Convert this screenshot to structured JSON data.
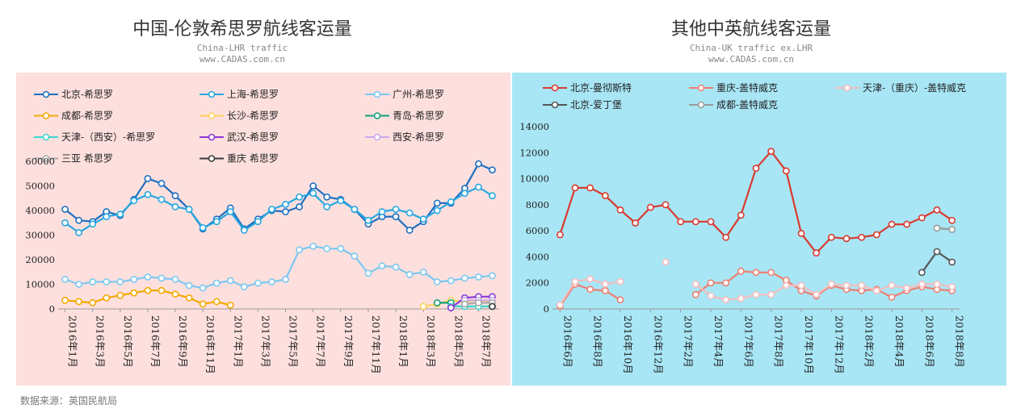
{
  "left": {
    "title": "中国-伦敦希思罗航线客运量",
    "subtitle1": "China-LHR traffic",
    "subtitle2": "www.CADAS.com.cn",
    "bg": "#fde0de"
  },
  "right": {
    "title": "其他中英航线客运量",
    "subtitle1": "China-UK traffic ex.LHR",
    "subtitle2": "www.CADAS.com.cn",
    "bg": "#a8e6f5"
  },
  "source": "数据来源：英国民航局",
  "chart_data": [
    {
      "type": "line",
      "title": "中国-伦敦希思罗航线客运量",
      "ylim": [
        0,
        60000
      ],
      "yticks": [
        0,
        10000,
        20000,
        30000,
        40000,
        50000,
        60000
      ],
      "x_start": "2016-01",
      "n_months": 32,
      "tick_labels": [
        "2016年1月",
        "2016年3月",
        "2016年5月",
        "2016年7月",
        "2016年9月",
        "2016年11月",
        "2017年1月",
        "2017年3月",
        "2017年5月",
        "2017年7月",
        "2017年9月",
        "2017年11月",
        "2018年1月",
        "2018年3月",
        "2018年5月",
        "2018年7月"
      ],
      "tick_every": 2,
      "legend_cols": 3,
      "series": [
        {
          "name": "北京-希思罗",
          "color": "#1e6fc0",
          "width": 2.2,
          "values": [
            40500,
            36000,
            35500,
            39500,
            38000,
            44500,
            53000,
            51000,
            46000,
            40500,
            32500,
            36500,
            41000,
            32500,
            36500,
            40000,
            39500,
            41500,
            50000,
            45500,
            44500,
            40500,
            34500,
            37500,
            37500,
            32000,
            35500,
            43000,
            43000,
            49000,
            59000,
            56500
          ]
        },
        {
          "name": "上海-希思罗",
          "color": "#27a8e0",
          "width": 2.2,
          "values": [
            35000,
            31000,
            34500,
            37500,
            38500,
            44000,
            46500,
            44500,
            41500,
            40500,
            33000,
            35500,
            39500,
            32000,
            35500,
            40500,
            42500,
            45500,
            47000,
            41500,
            44000,
            40500,
            36000,
            39500,
            40500,
            39000,
            36500,
            40000,
            43500,
            47000,
            49500,
            46000
          ]
        },
        {
          "name": "广州-希思罗",
          "color": "#7cc7ef",
          "width": 2.2,
          "values": [
            12000,
            10000,
            11000,
            11000,
            11000,
            12000,
            13000,
            12500,
            12000,
            9500,
            8500,
            10500,
            11500,
            9000,
            10500,
            11000,
            12000,
            24000,
            25500,
            24500,
            24500,
            21500,
            14500,
            17500,
            17000,
            14000,
            15000,
            11000,
            11500,
            12500,
            13000,
            13500
          ]
        },
        {
          "name": "成都-希思罗",
          "color": "#f5a800",
          "width": 2.2,
          "values": [
            3500,
            3000,
            2500,
            4500,
            5500,
            6500,
            7500,
            7500,
            6000,
            4500,
            2000,
            3000,
            1500,
            null,
            null,
            null,
            null,
            null,
            null,
            null,
            null,
            null,
            null,
            null,
            null,
            null,
            null,
            null,
            null,
            null,
            null,
            null
          ]
        },
        {
          "name": "长沙-希思罗",
          "color": "#ffd15c",
          "width": 2.2,
          "values": [
            null,
            null,
            null,
            null,
            null,
            null,
            null,
            null,
            null,
            null,
            null,
            null,
            null,
            null,
            null,
            null,
            null,
            null,
            null,
            null,
            null,
            null,
            null,
            null,
            null,
            null,
            1000,
            2000,
            3500,
            3000,
            3500,
            3000
          ]
        },
        {
          "name": "青岛-希思罗",
          "color": "#16a07a",
          "width": 2.2,
          "values": [
            null,
            null,
            null,
            null,
            null,
            null,
            null,
            null,
            null,
            null,
            null,
            null,
            null,
            null,
            null,
            null,
            null,
            null,
            null,
            null,
            null,
            null,
            null,
            null,
            null,
            null,
            null,
            2500,
            2500,
            null,
            null,
            null
          ]
        },
        {
          "name": "天津-（西安）-希思罗",
          "color": "#3cd6cf",
          "width": 2.2,
          "values": [
            null,
            null,
            null,
            null,
            null,
            null,
            null,
            null,
            null,
            null,
            null,
            null,
            null,
            null,
            null,
            null,
            null,
            null,
            null,
            null,
            null,
            null,
            null,
            null,
            null,
            null,
            null,
            null,
            1000,
            1000,
            1000,
            1000
          ]
        },
        {
          "name": "武汉-希思罗",
          "color": "#8a3ad6",
          "width": 2.2,
          "values": [
            null,
            null,
            null,
            null,
            null,
            null,
            null,
            null,
            null,
            null,
            null,
            null,
            null,
            null,
            null,
            null,
            null,
            null,
            null,
            null,
            null,
            null,
            null,
            null,
            null,
            null,
            null,
            null,
            500,
            4500,
            5000,
            5000
          ]
        },
        {
          "name": "西安-希思罗",
          "color": "#c9a8ef",
          "width": 2.2,
          "values": [
            null,
            null,
            null,
            null,
            null,
            null,
            null,
            null,
            null,
            null,
            null,
            null,
            null,
            null,
            null,
            null,
            null,
            null,
            null,
            null,
            null,
            null,
            null,
            null,
            null,
            null,
            null,
            null,
            null,
            3500,
            3500,
            3500
          ]
        },
        {
          "name": "三亚 希思罗",
          "color": "#a8a8a8",
          "width": 2.2,
          "values": [
            null,
            null,
            null,
            null,
            null,
            null,
            null,
            null,
            null,
            null,
            null,
            null,
            null,
            null,
            null,
            null,
            null,
            null,
            null,
            null,
            null,
            null,
            null,
            null,
            null,
            null,
            null,
            null,
            null,
            2000,
            2500,
            2500
          ]
        },
        {
          "name": "重庆 希思罗",
          "color": "#3a3a3a",
          "width": 2.2,
          "values": [
            null,
            null,
            null,
            null,
            null,
            null,
            null,
            null,
            null,
            null,
            null,
            null,
            null,
            null,
            null,
            null,
            null,
            null,
            null,
            null,
            null,
            null,
            null,
            null,
            null,
            null,
            null,
            null,
            null,
            null,
            null,
            1000
          ]
        }
      ]
    },
    {
      "type": "line",
      "title": "其他中英航线客运量",
      "ylim": [
        0,
        14000
      ],
      "yticks": [
        0,
        2000,
        4000,
        6000,
        8000,
        10000,
        12000,
        14000
      ],
      "x_start": "2016-06",
      "n_months": 27,
      "tick_labels": [
        "2016年6月",
        "2016年8月",
        "2016年10月",
        "2016年12月",
        "2017年2月",
        "2017年4月",
        "2017年6月",
        "2017年8月",
        "2017年10月",
        "2017年12月",
        "2018年2月",
        "2018年4月",
        "2018年6月",
        "2018年8月"
      ],
      "tick_every": 2,
      "legend_cols": 3,
      "series": [
        {
          "name": "北京-曼彻斯特",
          "color": "#d93a2f",
          "width": 2.2,
          "values": [
            5700,
            9300,
            9300,
            8700,
            7600,
            6600,
            7800,
            8000,
            6700,
            6700,
            6700,
            5500,
            7200,
            10800,
            12100,
            10600,
            5800,
            4300,
            5500,
            5400,
            5500,
            5700,
            6500,
            6500,
            7000,
            7600,
            6800
          ]
        },
        {
          "name": "重庆-盖特威克",
          "color": "#ee7f72",
          "width": 2.2,
          "values": [
            200,
            1900,
            1500,
            1400,
            700,
            null,
            null,
            null,
            null,
            1100,
            2000,
            2000,
            2900,
            2800,
            2800,
            2200,
            1400,
            1000,
            1800,
            1500,
            1400,
            1500,
            900,
            1400,
            1700,
            1500,
            1400
          ]
        },
        {
          "name": "天津-（重庆）-盖特威克",
          "color": "#f6bcbc",
          "width": 2.2,
          "values": [
            300,
            2100,
            2300,
            1900,
            2100,
            null,
            null,
            3600,
            null,
            1900,
            1000,
            700,
            800,
            1100,
            1100,
            1800,
            1800,
            1100,
            1900,
            1800,
            1800,
            1400,
            1800,
            1600,
            1900,
            1900,
            1700
          ]
        },
        {
          "name": "北京-爱丁堡",
          "color": "#555555",
          "width": 2.2,
          "values": [
            null,
            null,
            null,
            null,
            null,
            null,
            null,
            null,
            null,
            null,
            null,
            null,
            null,
            null,
            null,
            null,
            null,
            null,
            null,
            null,
            null,
            null,
            null,
            null,
            2800,
            4400,
            3600
          ]
        },
        {
          "name": "成都-盖特威克",
          "color": "#9a9a9a",
          "width": 2.2,
          "values": [
            null,
            null,
            null,
            null,
            null,
            null,
            null,
            null,
            null,
            null,
            null,
            null,
            null,
            null,
            null,
            null,
            null,
            null,
            null,
            null,
            null,
            null,
            null,
            null,
            null,
            6200,
            6100
          ]
        }
      ]
    }
  ]
}
